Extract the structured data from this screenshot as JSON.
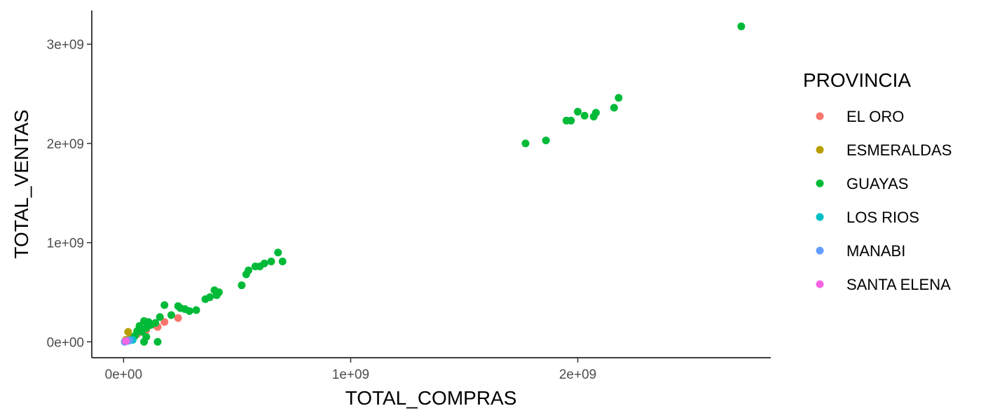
{
  "chart_data": {
    "type": "scatter",
    "title": "",
    "xlabel": "TOTAL_COMPRAS",
    "ylabel": "TOTAL_VENTAS",
    "xlim": [
      -140000000,
      2850000000
    ],
    "ylim": [
      -160000000,
      3340000000
    ],
    "x_ticks": [
      {
        "value": 0,
        "label": "0e+00"
      },
      {
        "value": 1000000000,
        "label": "1e+09"
      },
      {
        "value": 2000000000,
        "label": "2e+09"
      }
    ],
    "y_ticks": [
      {
        "value": 0,
        "label": "0e+00"
      },
      {
        "value": 1000000000,
        "label": "1e+09"
      },
      {
        "value": 2000000000,
        "label": "2e+09"
      },
      {
        "value": 3000000000,
        "label": "3e+09"
      }
    ],
    "grid": false,
    "legend": {
      "title": "PROVINCIA",
      "position": "right"
    },
    "series": [
      {
        "name": "EL ORO",
        "color": "#F8766D",
        "points": [
          [
            150000000,
            150000000
          ],
          [
            180000000,
            200000000
          ],
          [
            240000000,
            240000000
          ],
          [
            140000000,
            170000000
          ],
          [
            100000000,
            120000000
          ],
          [
            60000000,
            80000000
          ]
        ]
      },
      {
        "name": "ESMERALDAS",
        "color": "#B79F00",
        "points": [
          [
            20000000,
            100000000
          ],
          [
            30000000,
            40000000
          ],
          [
            10000000,
            20000000
          ]
        ]
      },
      {
        "name": "GUAYAS",
        "color": "#00BA38",
        "points": [
          [
            2720000000,
            3180000000
          ],
          [
            2180000000,
            2460000000
          ],
          [
            2160000000,
            2360000000
          ],
          [
            2080000000,
            2310000000
          ],
          [
            2070000000,
            2270000000
          ],
          [
            2030000000,
            2280000000
          ],
          [
            2000000000,
            2320000000
          ],
          [
            1970000000,
            2230000000
          ],
          [
            1950000000,
            2230000000
          ],
          [
            1860000000,
            2030000000
          ],
          [
            1770000000,
            2000000000
          ],
          [
            700000000,
            810000000
          ],
          [
            680000000,
            900000000
          ],
          [
            650000000,
            810000000
          ],
          [
            620000000,
            790000000
          ],
          [
            600000000,
            760000000
          ],
          [
            580000000,
            760000000
          ],
          [
            550000000,
            720000000
          ],
          [
            540000000,
            680000000
          ],
          [
            520000000,
            570000000
          ],
          [
            420000000,
            500000000
          ],
          [
            410000000,
            470000000
          ],
          [
            400000000,
            520000000
          ],
          [
            380000000,
            450000000
          ],
          [
            360000000,
            430000000
          ],
          [
            320000000,
            320000000
          ],
          [
            290000000,
            310000000
          ],
          [
            270000000,
            330000000
          ],
          [
            250000000,
            340000000
          ],
          [
            240000000,
            360000000
          ],
          [
            210000000,
            270000000
          ],
          [
            180000000,
            370000000
          ],
          [
            160000000,
            250000000
          ],
          [
            140000000,
            190000000
          ],
          [
            150000000,
            0
          ],
          [
            120000000,
            170000000
          ],
          [
            100000000,
            140000000
          ],
          [
            90000000,
            210000000
          ],
          [
            80000000,
            100000000
          ],
          [
            70000000,
            160000000
          ],
          [
            60000000,
            110000000
          ],
          [
            50000000,
            60000000
          ],
          [
            40000000,
            30000000
          ],
          [
            90000000,
            0
          ],
          [
            100000000,
            50000000
          ],
          [
            110000000,
            200000000
          ]
        ]
      },
      {
        "name": "LOS RIOS",
        "color": "#00BFC4",
        "points": [
          [
            40000000,
            20000000
          ],
          [
            20000000,
            10000000
          ]
        ]
      },
      {
        "name": "MANABI",
        "color": "#619CFF",
        "points": [
          [
            5000000,
            0
          ],
          [
            15000000,
            10000000
          ],
          [
            25000000,
            15000000
          ],
          [
            8000000,
            5000000
          ]
        ]
      },
      {
        "name": "SANTA ELENA",
        "color": "#F564E3",
        "points": [
          [
            10000000,
            8000000
          ]
        ]
      }
    ]
  }
}
